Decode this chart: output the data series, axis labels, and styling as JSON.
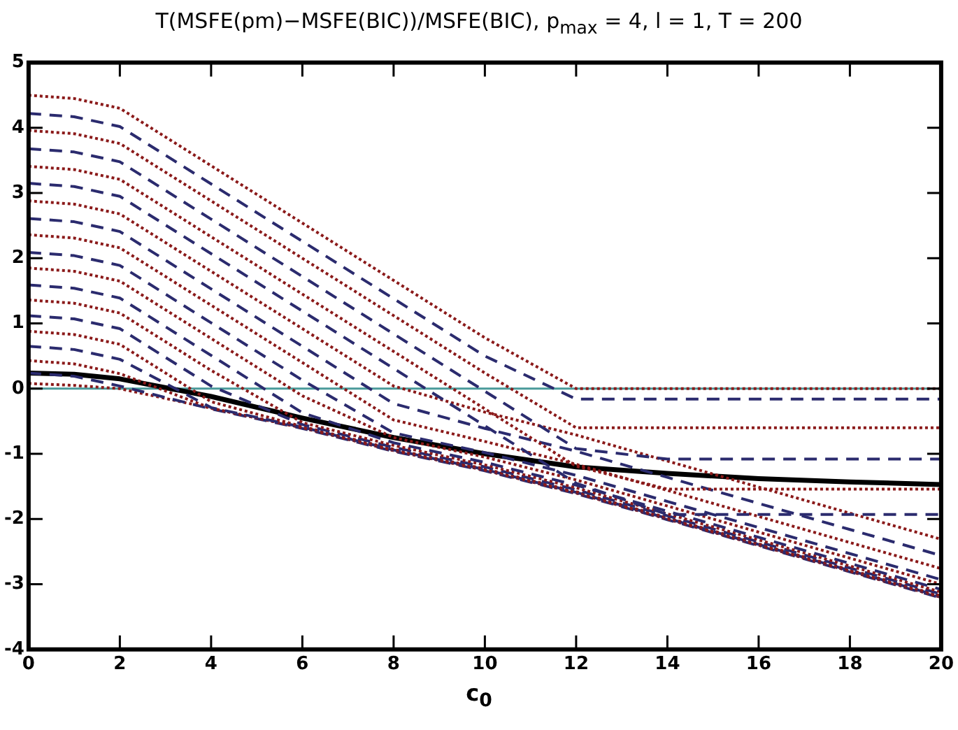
{
  "chart_data": {
    "type": "line",
    "title": "T(MSFE(pm)−MSFE(BIC))/MSFE(BIC), p$_{max}$ = 4, l = 1, T = 200",
    "xlabel": "c$_{0}$",
    "x": [
      0,
      1,
      2,
      4,
      6,
      8,
      10,
      12,
      14,
      16,
      18,
      20
    ],
    "xlim": [
      0,
      20
    ],
    "xticks": [
      0,
      2,
      4,
      6,
      8,
      10,
      12,
      14,
      16,
      18,
      20
    ],
    "ylim": [
      -4,
      5
    ],
    "yticks": [
      -4,
      -3,
      -2,
      -1,
      0,
      1,
      2,
      3,
      4,
      5
    ],
    "grid": false,
    "legend": false,
    "marker": "none",
    "ref_lines": [
      {
        "axis": "y",
        "value": 0,
        "color": "#4a9a9a"
      }
    ],
    "series": [
      {
        "color": "#8b1a1a",
        "line_style": "dotted",
        "values": [
          4.5,
          4.45,
          4.3,
          3.42,
          2.54,
          1.66,
          0.78,
          0,
          0,
          0,
          0,
          0
        ]
      },
      {
        "color": "#2b2b6e",
        "line_style": "dashed",
        "values": [
          4.22,
          4.17,
          4.02,
          3.14,
          2.26,
          1.38,
          0.5,
          -0.16,
          -0.16,
          -0.16,
          -0.16,
          -0.16
        ]
      },
      {
        "color": "#8b1a1a",
        "line_style": "dotted",
        "values": [
          3.96,
          3.91,
          3.76,
          2.88,
          2.0,
          1.12,
          0.24,
          -0.6,
          -0.6,
          -0.6,
          -0.6,
          -0.6
        ]
      },
      {
        "color": "#2b2b6e",
        "line_style": "dashed",
        "values": [
          3.68,
          3.63,
          3.48,
          2.6,
          1.72,
          0.84,
          -0.04,
          -0.92,
          -1.08,
          -1.08,
          -1.08,
          -1.08
        ]
      },
      {
        "color": "#8b1a1a",
        "line_style": "dotted",
        "values": [
          3.41,
          3.36,
          3.21,
          2.33,
          1.45,
          0.57,
          -0.31,
          -1.19,
          -1.54,
          -1.54,
          -1.54,
          -1.54
        ]
      },
      {
        "color": "#2b2b6e",
        "line_style": "dashed",
        "values": [
          3.15,
          3.1,
          2.95,
          2.07,
          1.19,
          0.31,
          -0.57,
          -1.45,
          -1.93,
          -1.93,
          -1.93,
          -1.93
        ]
      },
      {
        "color": "#8b1a1a",
        "line_style": "dotted",
        "values": [
          2.88,
          2.83,
          2.68,
          1.8,
          0.92,
          0.04,
          -0.36,
          -0.71,
          -1.11,
          -1.51,
          -1.91,
          -2.31
        ]
      },
      {
        "color": "#2b2b6e",
        "line_style": "dashed",
        "values": [
          2.61,
          2.56,
          2.41,
          1.53,
          0.65,
          -0.23,
          -0.61,
          -0.96,
          -1.36,
          -1.76,
          -2.16,
          -2.56
        ]
      },
      {
        "color": "#8b1a1a",
        "line_style": "dotted",
        "values": [
          2.36,
          2.31,
          2.16,
          1.28,
          0.4,
          -0.48,
          -0.81,
          -1.16,
          -1.56,
          -1.96,
          -2.36,
          -2.76
        ]
      },
      {
        "color": "#2b2b6e",
        "line_style": "dashed",
        "values": [
          2.09,
          2.04,
          1.89,
          1.01,
          0.13,
          -0.68,
          -0.98,
          -1.33,
          -1.73,
          -2.13,
          -2.53,
          -2.93
        ]
      },
      {
        "color": "#8b1a1a",
        "line_style": "dotted",
        "values": [
          1.85,
          1.8,
          1.65,
          0.77,
          -0.11,
          -0.75,
          -1.05,
          -1.4,
          -1.8,
          -2.2,
          -2.6,
          -3.0
        ]
      },
      {
        "color": "#2b2b6e",
        "line_style": "dashed",
        "values": [
          1.59,
          1.54,
          1.39,
          0.51,
          -0.37,
          -0.83,
          -1.13,
          -1.48,
          -1.88,
          -2.28,
          -2.68,
          -3.08
        ]
      },
      {
        "color": "#8b1a1a",
        "line_style": "dotted",
        "values": [
          1.36,
          1.31,
          1.16,
          0.28,
          -0.52,
          -0.87,
          -1.17,
          -1.52,
          -1.92,
          -2.32,
          -2.72,
          -3.12
        ]
      },
      {
        "color": "#2b2b6e",
        "line_style": "dashed",
        "values": [
          1.12,
          1.07,
          0.92,
          0.04,
          -0.55,
          -0.9,
          -1.2,
          -1.55,
          -1.95,
          -2.35,
          -2.75,
          -3.15
        ]
      },
      {
        "color": "#8b1a1a",
        "line_style": "dotted",
        "values": [
          0.88,
          0.83,
          0.68,
          -0.2,
          -0.58,
          -0.93,
          -1.23,
          -1.58,
          -1.98,
          -2.38,
          -2.78,
          -3.18
        ]
      },
      {
        "color": "#2b2b6e",
        "line_style": "dashed",
        "values": [
          0.65,
          0.6,
          0.45,
          -0.29,
          -0.59,
          -0.94,
          -1.24,
          -1.59,
          -1.99,
          -2.39,
          -2.79,
          -3.19
        ]
      },
      {
        "color": "#8b1a1a",
        "line_style": "dotted",
        "values": [
          0.43,
          0.38,
          0.23,
          -0.3,
          -0.6,
          -0.95,
          -1.25,
          -1.6,
          -2.0,
          -2.4,
          -2.8,
          -3.2
        ]
      },
      {
        "color": "#2b2b6e",
        "line_style": "dashed",
        "values": [
          0.24,
          0.19,
          0.04,
          -0.31,
          -0.61,
          -0.96,
          -1.26,
          -1.61,
          -2.01,
          -2.41,
          -2.81,
          -3.21
        ]
      },
      {
        "color": "#8b1a1a",
        "line_style": "dotted",
        "values": [
          0.08,
          0.05,
          0,
          -0.3,
          -0.6,
          -0.95,
          -1.25,
          -1.6,
          -2.0,
          -2.4,
          -2.8,
          -3.2
        ]
      },
      {
        "color": "#000000",
        "line_style": "solid",
        "values": [
          0.24,
          0.22,
          0.15,
          -0.12,
          -0.45,
          -0.75,
          -1.0,
          -1.2,
          -1.3,
          -1.38,
          -1.43,
          -1.47
        ]
      }
    ]
  }
}
